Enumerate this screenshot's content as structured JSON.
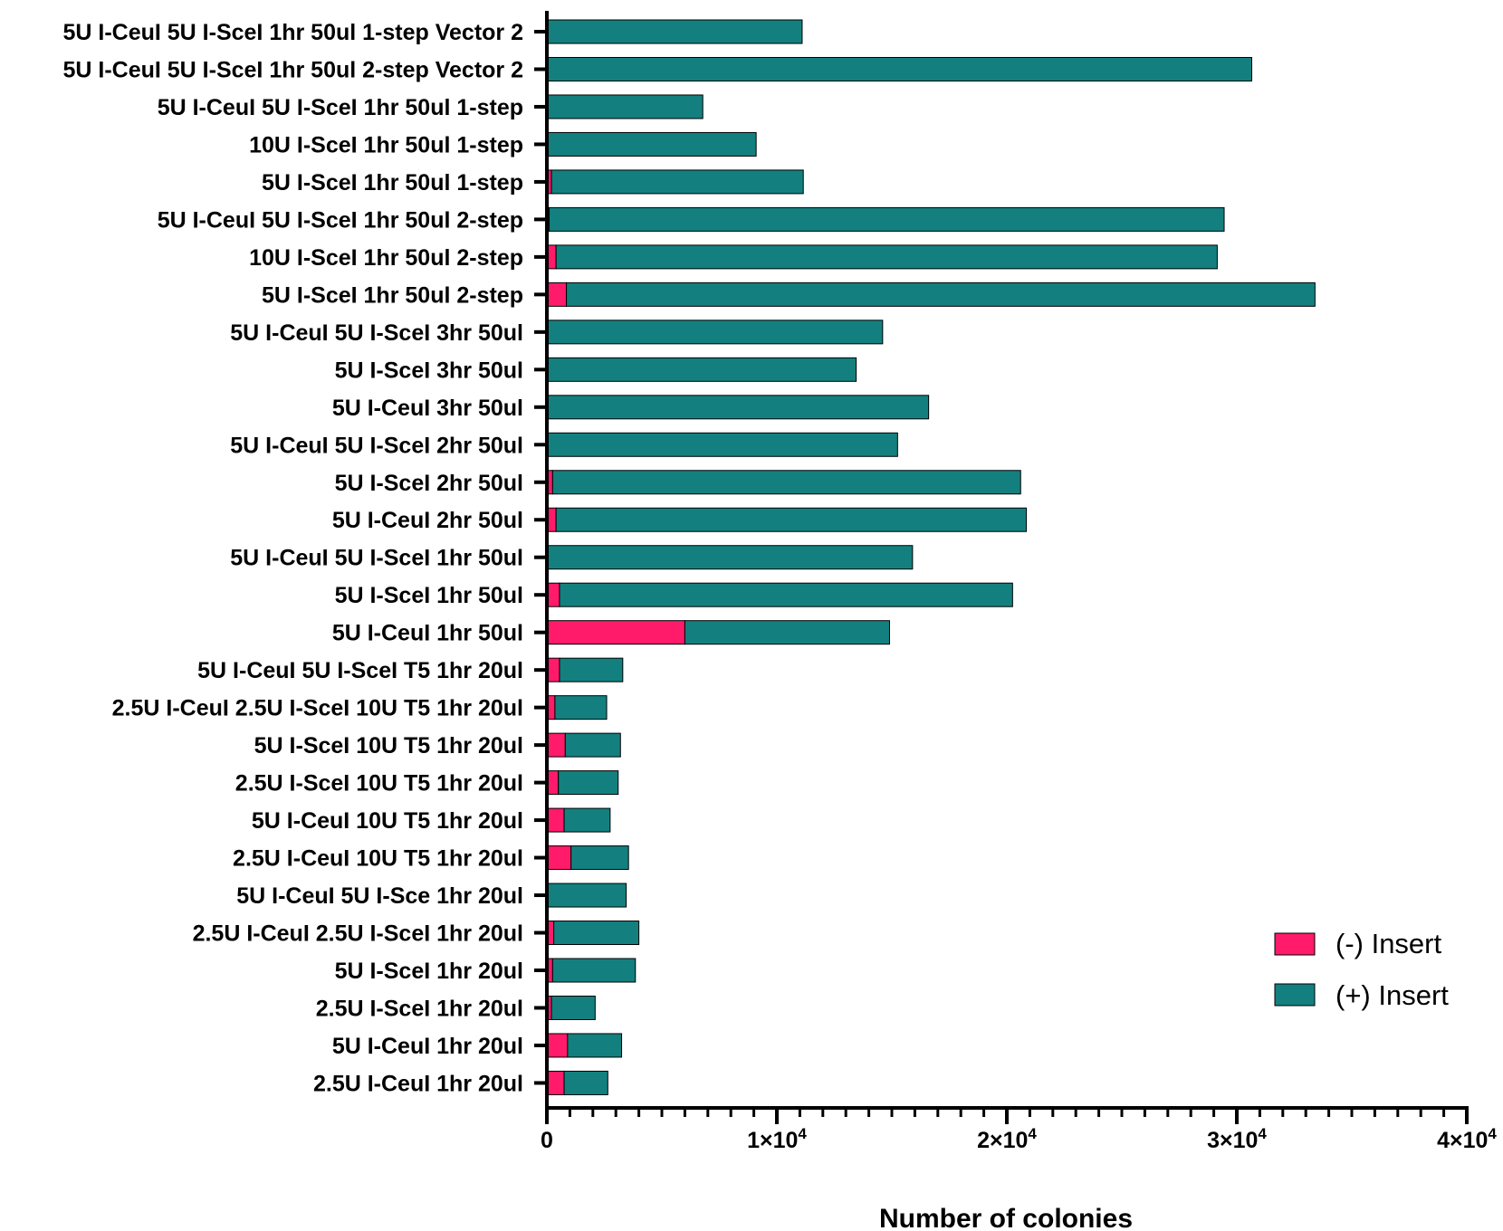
{
  "chart_data": {
    "type": "bar",
    "orientation": "horizontal",
    "stacked": true,
    "title": "",
    "xlabel": "Number of colonies",
    "ylabel": "",
    "xlim": [
      0,
      40000
    ],
    "x_ticks": [
      {
        "value": 0,
        "label": "0"
      },
      {
        "value": 10000,
        "base": "1×10",
        "exp": "4"
      },
      {
        "value": 20000,
        "base": "2×10",
        "exp": "4"
      },
      {
        "value": 30000,
        "base": "3×10",
        "exp": "4"
      },
      {
        "value": 40000,
        "base": "4×10",
        "exp": "4"
      }
    ],
    "x_minor_tick_step": 1000,
    "grid": false,
    "legend_position": "bottom-right",
    "categories": [
      "5U I-CeuI 5U I-SceI 1hr 50ul 1-step Vector 2",
      "5U I-CeuI 5U I-SceI 1hr 50ul 2-step Vector 2",
      "5U I-CeuI 5U I-SceI 1hr 50ul 1-step",
      "10U I-SceI 1hr 50ul 1-step",
      "5U I-SceI 1hr 50ul 1-step",
      "5U I-CeuI 5U I-SceI 1hr 50ul 2-step",
      "10U I-SceI 1hr 50ul 2-step",
      "5U I-SceI 1hr 50ul 2-step",
      "5U I-CeuI 5U I-SceI 3hr 50ul",
      "5U I-SceI 3hr 50ul",
      "5U I-CeuI 3hr 50ul",
      "5U I-CeuI 5U I-SceI 2hr 50ul",
      "5U I-SceI 2hr 50ul",
      "5U I-CeuI 2hr 50ul",
      "5U I-CeuI 5U I-SceI 1hr 50ul",
      "5U I-SceI 1hr 50ul",
      "5U I-CeuI 1hr 50ul",
      "5U I-CeuI 5U I-SceI T5 1hr 20ul",
      "2.5U I-CeuI 2.5U I-SceI 10U T5 1hr 20ul",
      "5U I-SceI 10U T5 1hr 20ul",
      "2.5U I-SceI 10U T5 1hr 20ul",
      "5U I-CeuI 10U T5 1hr 20ul",
      "2.5U I-CeuI 10U T5 1hr 20ul",
      "5U I-CeuI 5U I-Sce 1hr 20ul",
      "2.5U I-CeuI 2.5U I-SceI 1hr 20ul",
      "5U I-SceI 1hr 20ul",
      "2.5U I-SceI 1hr 20ul",
      "5U I-CeuI 1hr 20ul",
      "2.5U I-CeuI 1hr 20ul"
    ],
    "series": [
      {
        "name": "(-) Insert",
        "color": "#ff1a6a",
        "values": [
          50,
          50,
          30,
          50,
          200,
          100,
          400,
          850,
          50,
          50,
          50,
          50,
          250,
          400,
          50,
          550,
          6000,
          550,
          350,
          800,
          500,
          750,
          1050,
          50,
          300,
          250,
          200,
          900,
          750
        ]
      },
      {
        "name": "(+) Insert",
        "color": "#13807f",
        "values": [
          11050,
          30600,
          6750,
          9050,
          10950,
          29350,
          28750,
          32550,
          14550,
          13400,
          16550,
          15200,
          20350,
          20450,
          15850,
          19700,
          8900,
          2750,
          2250,
          2400,
          2600,
          2000,
          2500,
          3400,
          3700,
          3600,
          1900,
          2350,
          1900
        ]
      }
    ]
  }
}
